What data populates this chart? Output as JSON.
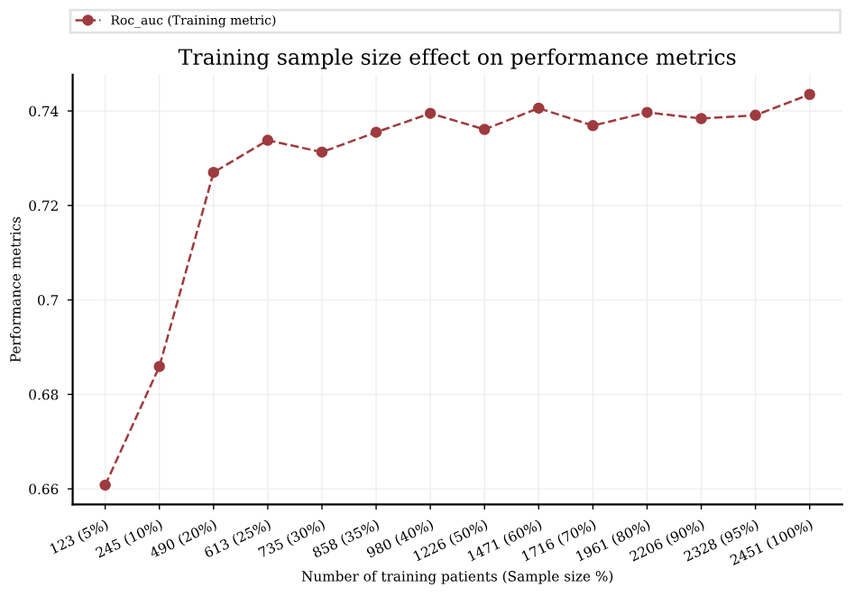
{
  "chart_data": {
    "type": "line",
    "title": "Training sample size effect on performance metrics",
    "xlabel": "Number of training patients (Sample size %)",
    "ylabel": "Performance metrics",
    "categories": [
      "123 (5%)",
      "245 (10%)",
      "490 (20%)",
      "613 (25%)",
      "735 (30%)",
      "858 (35%)",
      "980 (40%)",
      "1226 (50%)",
      "1471 (60%)",
      "1716 (70%)",
      "1961 (80%)",
      "2206 (90%)",
      "2328 (95%)",
      "2451 (100%)"
    ],
    "series": [
      {
        "name": "Roc_auc (Training metric)",
        "color": "#9e3b3f",
        "values": [
          0.6608,
          0.6859,
          0.727,
          0.7338,
          0.7313,
          0.7355,
          0.7395,
          0.7361,
          0.7406,
          0.7369,
          0.7397,
          0.7384,
          0.7391,
          0.7435
        ]
      }
    ],
    "ylim": [
      0.6567,
      0.7477
    ],
    "yticks": [
      0.66,
      0.68,
      0.7,
      0.72,
      0.74
    ],
    "grid": true,
    "legend": "top",
    "marker": "circle",
    "line_style": "dashed"
  }
}
